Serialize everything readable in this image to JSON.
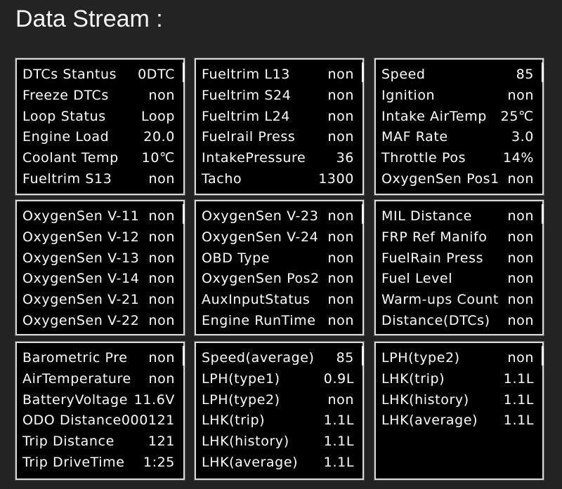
{
  "title": "Data Stream :",
  "panels": [
    {
      "rows": [
        [
          "DTCs Stantus",
          "0DTC"
        ],
        [
          "Freeze DTCs",
          "non"
        ],
        [
          "Loop Status",
          "Loop"
        ],
        [
          "Engine Load",
          "20.0"
        ],
        [
          "Coolant Temp",
          "10℃"
        ],
        [
          "Fueltrim S13",
          "non"
        ]
      ]
    },
    {
      "rows": [
        [
          "Fueltrim L13",
          "non"
        ],
        [
          "Fueltrim S24",
          "non"
        ],
        [
          "Fueltrim L24",
          "non"
        ],
        [
          "Fuelrail Press",
          "non"
        ],
        [
          "IntakePressure",
          "36"
        ],
        [
          "Tacho",
          "1300"
        ]
      ]
    },
    {
      "rows": [
        [
          "Speed",
          "85"
        ],
        [
          "Ignition",
          "non"
        ],
        [
          "Intake AirTemp",
          "25℃"
        ],
        [
          "MAF Rate",
          "3.0"
        ],
        [
          "Throttle Pos",
          "14%"
        ],
        [
          "OxygenSen Pos1",
          "non"
        ]
      ]
    },
    {
      "rows": [
        [
          "OxygenSen V-11",
          "non"
        ],
        [
          "OxygenSen V-12",
          "non"
        ],
        [
          "OxygenSen V-13",
          "non"
        ],
        [
          "OxygenSen V-14",
          "non"
        ],
        [
          "OxygenSen V-21",
          "non"
        ],
        [
          "OxygenSen V-22",
          "non"
        ]
      ]
    },
    {
      "rows": [
        [
          "OxygenSen V-23",
          "non"
        ],
        [
          "OxygenSen V-24",
          "non"
        ],
        [
          "OBD Type",
          "non"
        ],
        [
          "OxygenSen Pos2",
          "non"
        ],
        [
          "AuxInputStatus",
          "non"
        ],
        [
          "Engine RunTime",
          "non"
        ]
      ]
    },
    {
      "rows": [
        [
          "MIL Distance",
          "non"
        ],
        [
          "FRP Ref Manifo",
          "non"
        ],
        [
          "FuelRain Press",
          "non"
        ],
        [
          "Fuel Level",
          "non"
        ],
        [
          "Warm-ups Count",
          "non"
        ],
        [
          "Distance(DTCs)",
          "non"
        ]
      ]
    },
    {
      "rows": [
        [
          "Barometric Pre",
          "non"
        ],
        [
          "AirTemperature",
          "non"
        ],
        [
          "BatteryVoltage",
          "11.6V"
        ],
        [
          "ODO Distance",
          "000121"
        ],
        [
          "Trip Distance",
          "121"
        ],
        [
          "Trip DriveTime",
          "1:25"
        ]
      ]
    },
    {
      "rows": [
        [
          "Speed(average)",
          "85"
        ],
        [
          "LPH(type1)",
          "0.9L"
        ],
        [
          "LPH(type2)",
          "non"
        ],
        [
          "LHK(trip)",
          "1.1L"
        ],
        [
          "LHK(history)",
          "1.1L"
        ],
        [
          "LHK(average)",
          "1.1L"
        ]
      ]
    },
    {
      "rows": [
        [
          "LPH(type2)",
          "non"
        ],
        [
          "LHK(trip)",
          "1.1L"
        ],
        [
          "LHK(history)",
          "1.1L"
        ],
        [
          "LHK(average)",
          "1.1L"
        ]
      ]
    }
  ]
}
